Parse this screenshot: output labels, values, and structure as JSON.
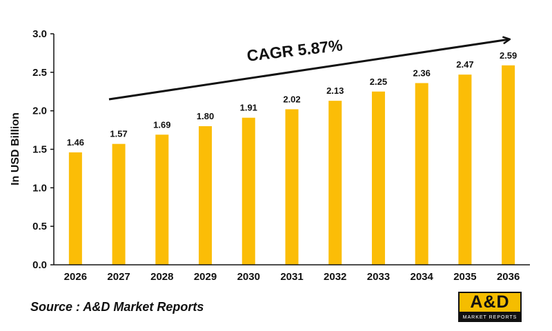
{
  "chart_data": {
    "type": "bar",
    "categories": [
      "2026",
      "2027",
      "2028",
      "2029",
      "2030",
      "2031",
      "2032",
      "2033",
      "2034",
      "2035",
      "2036"
    ],
    "values": [
      1.46,
      1.57,
      1.69,
      1.8,
      1.91,
      2.02,
      2.13,
      2.25,
      2.36,
      2.47,
      2.59
    ],
    "value_labels": [
      "1.46",
      "1.57",
      "1.69",
      "1.80",
      "1.91",
      "2.02",
      "2.13",
      "2.25",
      "2.36",
      "2.47",
      "2.59"
    ],
    "title": "",
    "xlabel": "",
    "ylabel": "In USD Billion",
    "ylim": [
      0,
      3.0
    ],
    "yticks": [
      "0.0",
      "0.5",
      "1.0",
      "1.5",
      "2.0",
      "2.5",
      "3.0"
    ],
    "annotation": "CAGR 5.87%",
    "bar_color": "#fbbd07",
    "grid": false,
    "legend": "none"
  },
  "source_text": "Source : A&D Market Reports",
  "logo": {
    "main": "A&D",
    "sub": "MARKET REPORTS"
  }
}
